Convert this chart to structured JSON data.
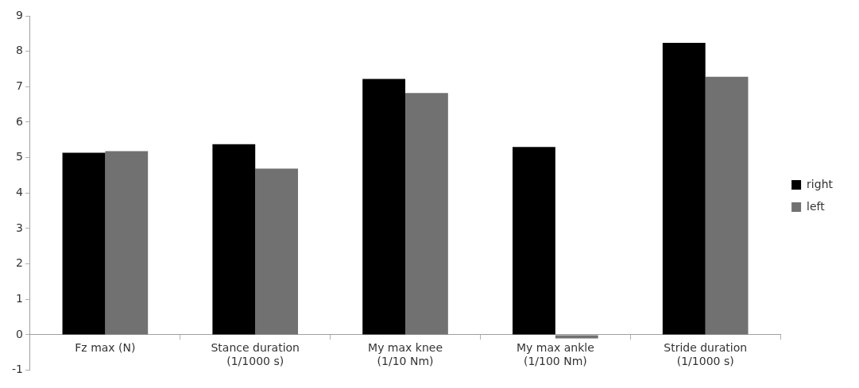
{
  "chart_data": {
    "type": "bar",
    "categories": [
      "Fz max (N)",
      "Stance duration (1/1000 s)",
      "My max knee (1/10 Nm)",
      "My max ankle (1/100 Nm)",
      "Stride duration (1/1000 s)"
    ],
    "series": [
      {
        "name": "right",
        "color": "#000000",
        "values": [
          5.14,
          5.38,
          7.22,
          5.3,
          8.24
        ]
      },
      {
        "name": "left",
        "color": "#717171",
        "values": [
          5.18,
          4.69,
          6.82,
          -0.1,
          7.28
        ]
      }
    ],
    "ylim": [
      -1,
      9
    ],
    "yticks": [
      -1,
      0,
      1,
      2,
      3,
      4,
      5,
      6,
      7,
      8,
      9
    ],
    "grid": false,
    "legend": "right"
  }
}
